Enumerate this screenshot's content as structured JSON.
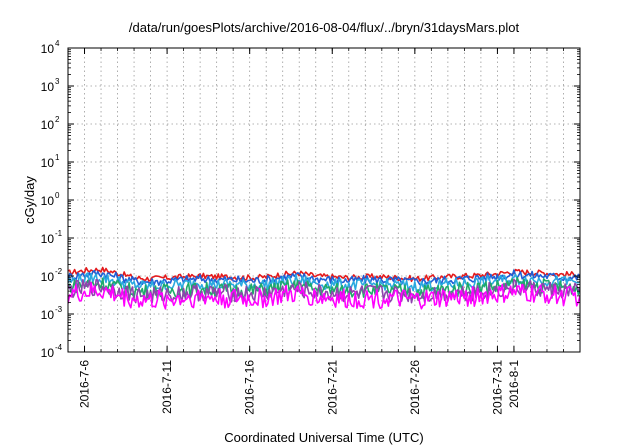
{
  "chart_data": {
    "type": "line",
    "title": "/data/run/goesPlots/archive/2016-08-04/flux/../bryn/31daysMars.plot",
    "xlabel": "Coordinated Universal Time (UTC)",
    "ylabel": "cGy/day",
    "yscale": "log",
    "ylim": [
      0.0001,
      10000
    ],
    "y_ticks": [
      {
        "base": "10",
        "exp": "-4",
        "value": 0.0001
      },
      {
        "base": "10",
        "exp": "-3",
        "value": 0.001
      },
      {
        "base": "10",
        "exp": "-2",
        "value": 0.01
      },
      {
        "base": "10",
        "exp": "-1",
        "value": 0.1
      },
      {
        "base": "10",
        "exp": "0",
        "value": 1
      },
      {
        "base": "10",
        "exp": "1",
        "value": 10
      },
      {
        "base": "10",
        "exp": "2",
        "value": 100
      },
      {
        "base": "10",
        "exp": "3",
        "value": 1000
      },
      {
        "base": "10",
        "exp": "4",
        "value": 10000
      }
    ],
    "xlim": [
      "2016-07-05",
      "2016-08-05"
    ],
    "x_ticks": [
      {
        "date": "2016-07-06",
        "label": "2016-7-6"
      },
      {
        "date": "2016-07-11",
        "label": "2016-7-11"
      },
      {
        "date": "2016-07-16",
        "label": "2016-7-16"
      },
      {
        "date": "2016-07-21",
        "label": "2016-7-21"
      },
      {
        "date": "2016-07-26",
        "label": "2016-7-26"
      },
      {
        "date": "2016-07-31",
        "label": "2016-7-31"
      },
      {
        "date": "2016-08-01",
        "label": "2016-8-1"
      }
    ],
    "grid": true,
    "x": [
      "2016-07-05",
      "2016-07-06",
      "2016-07-07",
      "2016-07-08",
      "2016-07-09",
      "2016-07-10",
      "2016-07-11",
      "2016-07-12",
      "2016-07-13",
      "2016-07-14",
      "2016-07-15",
      "2016-07-16",
      "2016-07-17",
      "2016-07-18",
      "2016-07-19",
      "2016-07-20",
      "2016-07-21",
      "2016-07-22",
      "2016-07-23",
      "2016-07-24",
      "2016-07-25",
      "2016-07-26",
      "2016-07-27",
      "2016-07-28",
      "2016-07-29",
      "2016-07-30",
      "2016-07-31",
      "2016-08-01",
      "2016-08-02",
      "2016-08-03",
      "2016-08-04",
      "2016-08-05"
    ],
    "series": [
      {
        "color": "#e41a1c",
        "values": [
          0.012,
          0.014,
          0.015,
          0.012,
          0.009,
          0.0085,
          0.009,
          0.0095,
          0.01,
          0.0095,
          0.0095,
          0.009,
          0.0095,
          0.011,
          0.012,
          0.01,
          0.0095,
          0.009,
          0.0095,
          0.0095,
          0.009,
          0.0085,
          0.009,
          0.0095,
          0.01,
          0.0105,
          0.0115,
          0.013,
          0.0125,
          0.012,
          0.011,
          0.011
        ]
      },
      {
        "color": "#1f5fd6",
        "values": [
          0.0095,
          0.011,
          0.012,
          0.0095,
          0.0075,
          0.007,
          0.0075,
          0.008,
          0.0085,
          0.008,
          0.008,
          0.0075,
          0.008,
          0.0092,
          0.01,
          0.0085,
          0.008,
          0.0075,
          0.008,
          0.008,
          0.0075,
          0.0072,
          0.0075,
          0.008,
          0.0085,
          0.009,
          0.0098,
          0.011,
          0.0105,
          0.01,
          0.0092,
          0.0092
        ]
      },
      {
        "color": "#2aa9e0",
        "values": [
          0.0072,
          0.0085,
          0.009,
          0.0072,
          0.0057,
          0.0053,
          0.0057,
          0.006,
          0.0064,
          0.006,
          0.006,
          0.0057,
          0.006,
          0.007,
          0.0076,
          0.0064,
          0.006,
          0.0057,
          0.006,
          0.006,
          0.0057,
          0.0054,
          0.0057,
          0.006,
          0.0064,
          0.0068,
          0.0074,
          0.0083,
          0.008,
          0.0076,
          0.007,
          0.007
        ]
      },
      {
        "color": "#1faa6a",
        "values": [
          0.0052,
          0.006,
          0.0065,
          0.0052,
          0.0041,
          0.0038,
          0.0041,
          0.0043,
          0.0046,
          0.0043,
          0.0043,
          0.0041,
          0.0043,
          0.005,
          0.0055,
          0.0046,
          0.0043,
          0.0041,
          0.0043,
          0.0043,
          0.0041,
          0.0039,
          0.0041,
          0.0043,
          0.0046,
          0.0049,
          0.0053,
          0.006,
          0.0057,
          0.0055,
          0.005,
          0.005
        ]
      },
      {
        "color": "#8e44ad",
        "values": [
          0.0042,
          0.0048,
          0.0052,
          0.0042,
          0.0033,
          0.003,
          0.0033,
          0.0035,
          0.0037,
          0.0035,
          0.0035,
          0.0033,
          0.0035,
          0.004,
          0.0044,
          0.0037,
          0.0035,
          0.0033,
          0.0035,
          0.0035,
          0.0033,
          0.0031,
          0.0033,
          0.0035,
          0.0037,
          0.0039,
          0.0043,
          0.0048,
          0.0046,
          0.0044,
          0.004,
          0.004
        ]
      },
      {
        "color": "#ff00ff",
        "values": [
          0.0032,
          0.0036,
          0.004,
          0.0031,
          0.0024,
          0.0022,
          0.0024,
          0.0026,
          0.0028,
          0.0026,
          0.0026,
          0.0024,
          0.0026,
          0.003,
          0.0033,
          0.0028,
          0.0026,
          0.0024,
          0.0026,
          0.0026,
          0.0024,
          0.0023,
          0.0024,
          0.0026,
          0.0028,
          0.003,
          0.0032,
          0.0036,
          0.0034,
          0.0033,
          0.003,
          0.003
        ]
      }
    ]
  }
}
